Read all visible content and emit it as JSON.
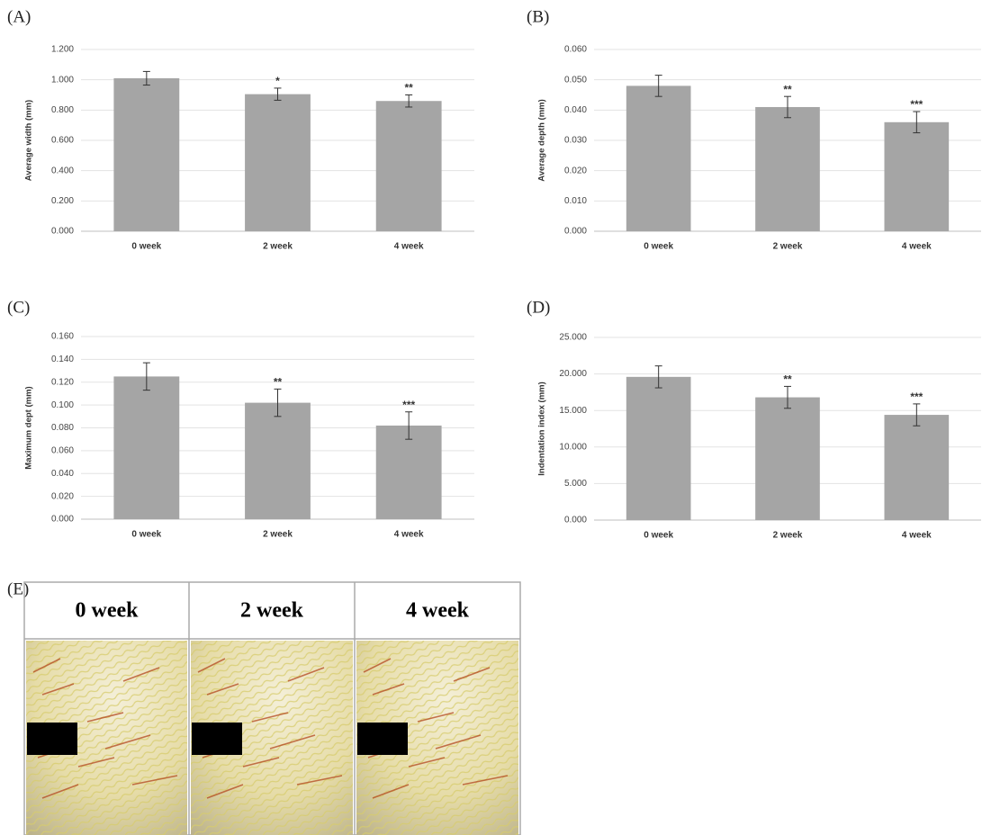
{
  "chart_data": [
    {
      "type": "bar",
      "label": "(A)",
      "y_label": "Average width (mm)",
      "categories": [
        "0 week",
        "2 week",
        "4 week"
      ],
      "values": [
        1.01,
        0.905,
        0.86
      ],
      "errors": [
        0.045,
        0.04,
        0.04
      ],
      "significance": [
        null,
        "*",
        "**"
      ],
      "color": "#a5a5a5",
      "ylim": [
        0,
        1.2
      ],
      "yticks": [
        {
          "value": 0,
          "label": "0.000"
        },
        {
          "value": 0.2,
          "label": "0.200"
        },
        {
          "value": 0.4,
          "label": "0.400"
        },
        {
          "value": 0.6,
          "label": "0.600"
        },
        {
          "value": 0.8,
          "label": "0.800"
        },
        {
          "value": 1.0,
          "label": "1.000"
        },
        {
          "value": 1.2,
          "label": "1.200"
        }
      ],
      "grid": true
    },
    {
      "type": "bar",
      "label": "(B)",
      "y_label": "Average depth (mm)",
      "categories": [
        "0 week",
        "2 week",
        "4 week"
      ],
      "values": [
        0.048,
        0.041,
        0.036
      ],
      "errors": [
        0.0035,
        0.0035,
        0.0035
      ],
      "significance": [
        null,
        "**",
        "***"
      ],
      "color": "#a5a5a5",
      "ylim": [
        0,
        0.06
      ],
      "yticks": [
        {
          "value": 0,
          "label": "0.000"
        },
        {
          "value": 0.01,
          "label": "0.010"
        },
        {
          "value": 0.02,
          "label": "0.020"
        },
        {
          "value": 0.03,
          "label": "0.030"
        },
        {
          "value": 0.04,
          "label": "0.040"
        },
        {
          "value": 0.05,
          "label": "0.050"
        },
        {
          "value": 0.06,
          "label": "0.060"
        }
      ],
      "grid": true
    },
    {
      "type": "bar",
      "label": "(C)",
      "y_label": "Maximum dept (mm)",
      "categories": [
        "0 week",
        "2 week",
        "4 week"
      ],
      "values": [
        0.125,
        0.102,
        0.082
      ],
      "errors": [
        0.012,
        0.012,
        0.012
      ],
      "significance": [
        null,
        "**",
        "***"
      ],
      "color": "#a5a5a5",
      "ylim": [
        0,
        0.16
      ],
      "yticks": [
        {
          "value": 0,
          "label": "0.000"
        },
        {
          "value": 0.02,
          "label": "0.020"
        },
        {
          "value": 0.04,
          "label": "0.040"
        },
        {
          "value": 0.06,
          "label": "0.060"
        },
        {
          "value": 0.08,
          "label": "0.080"
        },
        {
          "value": 0.1,
          "label": "0.100"
        },
        {
          "value": 0.12,
          "label": "0.120"
        },
        {
          "value": 0.14,
          "label": "0.140"
        },
        {
          "value": 0.16,
          "label": "0.160"
        }
      ],
      "grid": true
    },
    {
      "type": "bar",
      "label": "(D)",
      "y_label": "Indentation index (mm)",
      "categories": [
        "0 week",
        "2 week",
        "4 week"
      ],
      "values": [
        19.6,
        16.8,
        14.4
      ],
      "errors": [
        1.5,
        1.5,
        1.5
      ],
      "significance": [
        null,
        "**",
        "***"
      ],
      "color": "#a5a5a5",
      "ylim": [
        0,
        25
      ],
      "yticks": [
        {
          "value": 0,
          "label": "0.000"
        },
        {
          "value": 5,
          "label": "5.000"
        },
        {
          "value": 10,
          "label": "10.000"
        },
        {
          "value": 15,
          "label": "15.000"
        },
        {
          "value": 20,
          "label": "20.000"
        },
        {
          "value": 25,
          "label": "25.000"
        }
      ],
      "grid": true
    }
  ],
  "panel_e": {
    "label": "(E)",
    "columns": [
      "0 week",
      "2 week",
      "4 week"
    ]
  }
}
